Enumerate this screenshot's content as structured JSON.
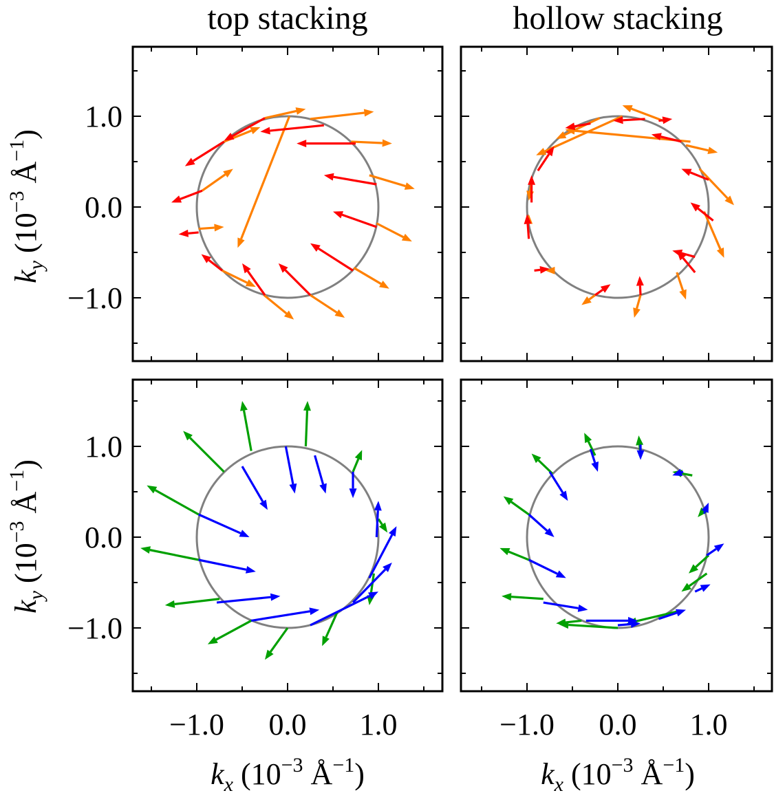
{
  "chart_data": [
    {
      "type": "vector-field",
      "title": "top stacking",
      "xlim": [
        -1.7,
        1.7
      ],
      "ylim": [
        -1.7,
        1.7
      ],
      "xticks": [
        "−1.0",
        "0.0",
        "1.0"
      ],
      "yticks": [
        "1.0",
        "0.0",
        "−1.0"
      ],
      "xlabel": "",
      "ylabel": "k_y (10^-3 Å^-1)",
      "unit_circle": true,
      "series": [
        {
          "color": "#ff8000",
          "arrows": [
            [
              0.02,
              1.0,
              -0.55,
              -0.45
            ],
            [
              0.25,
              0.97,
              0.95,
              1.05
            ],
            [
              0.7,
              0.72,
              1.15,
              0.7
            ],
            [
              0.9,
              0.35,
              1.4,
              0.2
            ],
            [
              0.98,
              -0.18,
              1.37,
              -0.38
            ],
            [
              0.73,
              -0.67,
              1.12,
              -0.9
            ],
            [
              0.25,
              -0.97,
              0.63,
              -1.22
            ],
            [
              -0.26,
              -0.97,
              0.07,
              -1.24
            ],
            [
              -0.72,
              -0.7,
              -0.35,
              -0.88
            ],
            [
              -0.98,
              -0.24,
              -0.7,
              -0.22
            ],
            [
              -0.94,
              0.18,
              -0.6,
              0.42
            ],
            [
              -0.7,
              0.72,
              -0.3,
              0.88
            ],
            [
              -0.25,
              0.98,
              0.2,
              1.08
            ]
          ]
        },
        {
          "color": "#ff0000",
          "arrows": [
            [
              0.4,
              0.9,
              -0.3,
              0.83
            ],
            [
              0.75,
              0.7,
              0.1,
              0.7
            ],
            [
              0.98,
              0.25,
              0.4,
              0.35
            ],
            [
              0.98,
              -0.22,
              0.5,
              -0.05
            ],
            [
              0.72,
              -0.7,
              0.25,
              -0.4
            ],
            [
              0.25,
              -0.97,
              -0.1,
              -0.62
            ],
            [
              -0.25,
              -0.97,
              -0.5,
              -0.62
            ],
            [
              -0.72,
              -0.7,
              -0.95,
              -0.52
            ],
            [
              -0.98,
              -0.28,
              -1.2,
              -0.3
            ],
            [
              -0.94,
              0.18,
              -1.28,
              0.05
            ],
            [
              -0.7,
              0.72,
              -1.13,
              0.45
            ],
            [
              -0.25,
              0.98,
              -0.7,
              0.73
            ]
          ]
        }
      ]
    },
    {
      "type": "vector-field",
      "title": "hollow stacking",
      "xlim": [
        -1.7,
        1.7
      ],
      "ylim": [
        -1.7,
        1.7
      ],
      "xticks": [
        "−1.0",
        "0.0",
        "1.0"
      ],
      "yticks": [],
      "xlabel": "",
      "ylabel": "",
      "unit_circle": true,
      "series": [
        {
          "color": "#ff8000",
          "arrows": [
            [
              -0.2,
              0.98,
              -0.68,
              0.75
            ],
            [
              0.05,
              1.0,
              -0.9,
              0.57
            ],
            [
              0.5,
              0.95,
              0.05,
              1.12
            ],
            [
              0.8,
              0.72,
              -0.58,
              0.85
            ],
            [
              0.75,
              0.68,
              1.1,
              0.6
            ],
            [
              0.9,
              0.42,
              1.28,
              0.02
            ],
            [
              0.95,
              -0.05,
              1.17,
              -0.56
            ],
            [
              0.65,
              -0.72,
              0.75,
              -1.02
            ],
            [
              0.25,
              -0.97,
              0.18,
              -1.22
            ],
            [
              -0.25,
              -0.97,
              -0.4,
              -1.08
            ],
            [
              -0.72,
              -0.7,
              -0.8,
              -0.7
            ],
            [
              -0.98,
              -0.15,
              -0.98,
              -0.08
            ],
            [
              -0.95,
              0.28,
              -0.98,
              0.07
            ]
          ]
        },
        {
          "color": "#ff0000",
          "arrows": [
            [
              0.45,
              0.95,
              0.6,
              0.97
            ],
            [
              0.3,
              0.97,
              -0.05,
              0.95
            ],
            [
              0.7,
              0.72,
              0.37,
              0.8
            ],
            [
              1.0,
              0.3,
              0.7,
              0.42
            ],
            [
              1.05,
              -0.15,
              0.8,
              0.05
            ],
            [
              0.85,
              -0.55,
              0.6,
              -0.48
            ],
            [
              0.85,
              -0.72,
              0.65,
              -0.48
            ],
            [
              0.25,
              -0.97,
              0.24,
              -0.76
            ],
            [
              -0.25,
              -0.97,
              -0.08,
              -0.85
            ],
            [
              -0.92,
              -0.7,
              -0.75,
              -0.68
            ],
            [
              -0.98,
              -0.35,
              -1.0,
              -0.08
            ],
            [
              -0.95,
              0.05,
              -0.95,
              0.35
            ],
            [
              -0.88,
              0.4,
              -0.7,
              0.67
            ],
            [
              -0.3,
              0.92,
              -0.58,
              0.87
            ]
          ]
        }
      ]
    },
    {
      "type": "vector-field",
      "title": "",
      "xlim": [
        -1.7,
        1.7
      ],
      "ylim": [
        -1.7,
        1.7
      ],
      "xticks": [
        "−1.0",
        "0.0",
        "1.0"
      ],
      "yticks": [
        "1.0",
        "0.0",
        "−1.0"
      ],
      "xlabel": "k_x (10^-3 Å^-1)",
      "ylabel": "k_y (10^-3 Å^-1)",
      "unit_circle": true,
      "series": [
        {
          "color": "#00a000",
          "arrows": [
            [
              0.2,
              1.0,
              0.22,
              1.5
            ],
            [
              -0.4,
              0.95,
              -0.5,
              1.5
            ],
            [
              -0.7,
              0.72,
              -1.15,
              1.17
            ],
            [
              -0.98,
              0.25,
              -1.55,
              0.57
            ],
            [
              -0.98,
              -0.25,
              -1.62,
              -0.12
            ],
            [
              -0.75,
              -0.68,
              -1.35,
              -0.75
            ],
            [
              -0.4,
              -0.92,
              -0.88,
              -1.18
            ],
            [
              0.0,
              -1.0,
              -0.25,
              -1.35
            ],
            [
              0.55,
              -0.82,
              0.38,
              -1.2
            ],
            [
              0.95,
              -0.4,
              0.9,
              -0.75
            ],
            [
              1.0,
              0.2,
              1.1,
              0.05
            ],
            [
              0.72,
              0.72,
              0.82,
              0.96
            ]
          ]
        },
        {
          "color": "#0000ff",
          "arrows": [
            [
              0.3,
              0.9,
              0.42,
              0.48
            ],
            [
              0.72,
              0.72,
              0.72,
              0.43
            ],
            [
              -0.02,
              1.0,
              0.08,
              0.48
            ],
            [
              -0.5,
              0.78,
              -0.22,
              0.3
            ],
            [
              -0.98,
              0.25,
              -0.42,
              0.0
            ],
            [
              -0.98,
              -0.25,
              -0.35,
              -0.38
            ],
            [
              -0.78,
              -0.72,
              -0.08,
              -0.65
            ],
            [
              -0.4,
              -0.92,
              0.35,
              -0.8
            ],
            [
              0.25,
              -0.97,
              1.0,
              -0.6
            ],
            [
              0.72,
              -0.72,
              1.15,
              -0.28
            ],
            [
              0.9,
              -0.45,
              1.2,
              0.12
            ],
            [
              0.98,
              0.0,
              1.0,
              0.4
            ]
          ]
        }
      ]
    },
    {
      "type": "vector-field",
      "title": "",
      "xlim": [
        -1.7,
        1.7
      ],
      "ylim": [
        -1.7,
        1.7
      ],
      "xticks": [
        "−1.0",
        "0.0",
        "1.0"
      ],
      "yticks": [],
      "xlabel": "k_x (10^-3 Å^-1)",
      "ylabel": "",
      "unit_circle": true,
      "series": [
        {
          "color": "#00a000",
          "arrows": [
            [
              0.0,
              -1.0,
              -0.65,
              -0.96
            ],
            [
              0.65,
              -0.82,
              0.1,
              -0.95
            ],
            [
              0.98,
              -0.4,
              0.7,
              -0.6
            ],
            [
              1.0,
              -0.2,
              0.78,
              -0.4
            ],
            [
              0.95,
              0.3,
              0.88,
              0.22
            ],
            [
              0.82,
              0.68,
              0.6,
              0.72
            ],
            [
              0.25,
              0.9,
              0.23,
              1.12
            ],
            [
              -0.25,
              0.9,
              -0.37,
              1.15
            ],
            [
              -0.72,
              0.7,
              -0.95,
              0.92
            ],
            [
              -0.98,
              0.25,
              -1.26,
              0.45
            ],
            [
              -0.98,
              -0.25,
              -1.3,
              -0.12
            ],
            [
              -0.82,
              -0.68,
              -1.28,
              -0.65
            ],
            [
              -0.4,
              -0.92,
              -0.68,
              -0.95
            ]
          ]
        },
        {
          "color": "#0000ff",
          "arrows": [
            [
              0.0,
              -0.97,
              0.25,
              -0.95
            ],
            [
              0.45,
              -0.9,
              0.75,
              -0.8
            ],
            [
              0.85,
              -0.6,
              1.02,
              -0.52
            ],
            [
              0.98,
              -0.2,
              1.17,
              -0.07
            ],
            [
              0.95,
              0.26,
              1.0,
              0.38
            ],
            [
              0.72,
              0.72,
              0.6,
              0.68
            ],
            [
              0.25,
              1.02,
              0.25,
              0.85
            ],
            [
              -0.3,
              0.97,
              -0.22,
              0.72
            ],
            [
              -0.75,
              0.72,
              -0.55,
              0.4
            ],
            [
              -0.98,
              0.25,
              -0.7,
              0.0
            ],
            [
              -0.98,
              -0.25,
              -0.57,
              -0.45
            ],
            [
              -0.82,
              -0.72,
              -0.33,
              -0.8
            ],
            [
              -0.35,
              -0.92,
              0.22,
              -0.92
            ]
          ]
        }
      ]
    }
  ]
}
